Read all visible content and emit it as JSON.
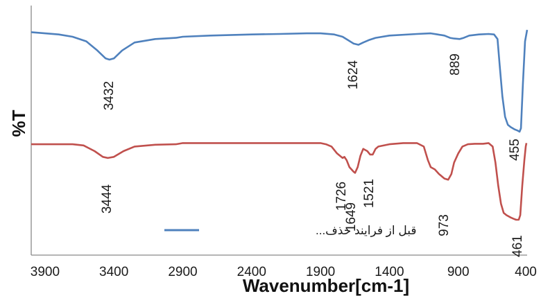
{
  "chart_data": {
    "type": "line",
    "xlabel": "Wavenumber[cm-1]",
    "ylabel": "%T",
    "xlim": [
      4000,
      400
    ],
    "x_reversed": true,
    "x_ticks": [
      "3900",
      "3400",
      "2900",
      "2400",
      "1900",
      "1400",
      "900",
      "400"
    ],
    "x_tick_values": [
      3900,
      3400,
      2900,
      2400,
      1900,
      1400,
      900,
      400
    ],
    "y_ticks_shown": false,
    "grid": false,
    "legend": {
      "placement": "bottom-center",
      "entries": [
        "قبل از فرایند حذف..."
      ]
    },
    "series": [
      {
        "name": "قبل از فرایند حذف...",
        "color": "#4f81bd",
        "points": [
          [
            4000,
            92
          ],
          [
            3900,
            91.5
          ],
          [
            3800,
            91
          ],
          [
            3700,
            90
          ],
          [
            3600,
            88
          ],
          [
            3520,
            84
          ],
          [
            3460,
            80.5
          ],
          [
            3432,
            80
          ],
          [
            3400,
            80.5
          ],
          [
            3340,
            84
          ],
          [
            3250,
            87.5
          ],
          [
            3100,
            89
          ],
          [
            2950,
            89.5
          ],
          [
            2900,
            90
          ],
          [
            2700,
            90.5
          ],
          [
            2400,
            91
          ],
          [
            2200,
            91.2
          ],
          [
            2000,
            91.5
          ],
          [
            1900,
            91.5
          ],
          [
            1800,
            91
          ],
          [
            1740,
            90
          ],
          [
            1700,
            88.5
          ],
          [
            1660,
            87
          ],
          [
            1624,
            86.5
          ],
          [
            1590,
            87.5
          ],
          [
            1550,
            88.5
          ],
          [
            1500,
            89.5
          ],
          [
            1400,
            90.5
          ],
          [
            1200,
            91.2
          ],
          [
            1100,
            91.5
          ],
          [
            1050,
            91
          ],
          [
            1000,
            90.5
          ],
          [
            960,
            89.5
          ],
          [
            930,
            89.2
          ],
          [
            889,
            89
          ],
          [
            860,
            89.5
          ],
          [
            820,
            90.5
          ],
          [
            750,
            91
          ],
          [
            680,
            91.2
          ],
          [
            640,
            91
          ],
          [
            615,
            89
          ],
          [
            600,
            78
          ],
          [
            580,
            64
          ],
          [
            560,
            55
          ],
          [
            540,
            51.5
          ],
          [
            520,
            50.5
          ],
          [
            490,
            49.5
          ],
          [
            470,
            49
          ],
          [
            455,
            48.5
          ],
          [
            445,
            50
          ],
          [
            430,
            70
          ],
          [
            415,
            88
          ],
          [
            400,
            93
          ]
        ]
      },
      {
        "name": "",
        "color": "#c0504d",
        "points": [
          [
            4000,
            43
          ],
          [
            3900,
            43
          ],
          [
            3800,
            43
          ],
          [
            3700,
            43
          ],
          [
            3620,
            42.5
          ],
          [
            3540,
            40
          ],
          [
            3480,
            37.5
          ],
          [
            3444,
            37
          ],
          [
            3400,
            37.5
          ],
          [
            3330,
            40
          ],
          [
            3250,
            42
          ],
          [
            3100,
            42.8
          ],
          [
            2950,
            43
          ],
          [
            2900,
            43.5
          ],
          [
            2700,
            43.5
          ],
          [
            2400,
            43.5
          ],
          [
            2200,
            43.5
          ],
          [
            2000,
            43.5
          ],
          [
            1900,
            43.5
          ],
          [
            1860,
            43
          ],
          [
            1820,
            42
          ],
          [
            1780,
            39
          ],
          [
            1740,
            37
          ],
          [
            1726,
            37.5
          ],
          [
            1710,
            36
          ],
          [
            1690,
            33
          ],
          [
            1660,
            31
          ],
          [
            1649,
            30.5
          ],
          [
            1630,
            33
          ],
          [
            1610,
            38
          ],
          [
            1590,
            41
          ],
          [
            1560,
            40
          ],
          [
            1540,
            38.5
          ],
          [
            1521,
            38.5
          ],
          [
            1500,
            41
          ],
          [
            1480,
            42
          ],
          [
            1400,
            43
          ],
          [
            1300,
            43.5
          ],
          [
            1200,
            43.5
          ],
          [
            1150,
            42
          ],
          [
            1120,
            36
          ],
          [
            1100,
            33
          ],
          [
            1070,
            32
          ],
          [
            1040,
            30
          ],
          [
            1000,
            28
          ],
          [
            973,
            27.5
          ],
          [
            950,
            30
          ],
          [
            930,
            35
          ],
          [
            900,
            39
          ],
          [
            870,
            42
          ],
          [
            830,
            43
          ],
          [
            780,
            43.2
          ],
          [
            720,
            43.2
          ],
          [
            680,
            43.5
          ],
          [
            650,
            42
          ],
          [
            630,
            35
          ],
          [
            610,
            25
          ],
          [
            590,
            17
          ],
          [
            570,
            13
          ],
          [
            550,
            12
          ],
          [
            520,
            11
          ],
          [
            500,
            10.5
          ],
          [
            480,
            10
          ],
          [
            461,
            10
          ],
          [
            450,
            12
          ],
          [
            435,
            25
          ],
          [
            420,
            36
          ],
          [
            410,
            42
          ],
          [
            405,
            43.5
          ]
        ]
      }
    ],
    "annotations": [
      "3432",
      "1624",
      "889",
      "455",
      "3444",
      "1726",
      "1649",
      "1521",
      "973",
      "461"
    ]
  }
}
